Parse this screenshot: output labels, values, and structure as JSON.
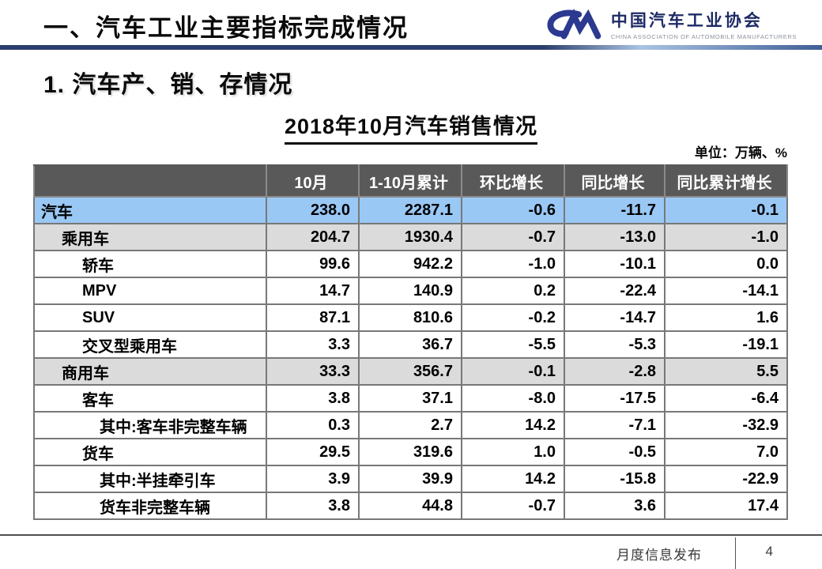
{
  "header": {
    "title": "一、汽车工业主要指标完成情况",
    "logo": {
      "name_cn": "中国汽车工业协会",
      "name_en": "CHINA ASSOCIATION OF AUTOMOBILE MANUFACTURERS"
    }
  },
  "section_title": "1. 汽车产、销、存情况",
  "table_title": "2018年10月汽车销售情况",
  "unit_label": "单位：万辆、%",
  "chart_data": {
    "type": "table",
    "title": "2018年10月汽车销售情况",
    "unit": "万辆、%",
    "columns": [
      "",
      "10月",
      "1-10月累计",
      "环比增长",
      "同比增长",
      "同比累计增长"
    ],
    "rows": [
      {
        "label": "汽车",
        "indent": 0,
        "style": "blue",
        "values": [
          "238.0",
          "2287.1",
          "-0.6",
          "-11.7",
          "-0.1"
        ]
      },
      {
        "label": "乘用车",
        "indent": 1,
        "style": "gray",
        "values": [
          "204.7",
          "1930.4",
          "-0.7",
          "-13.0",
          "-1.0"
        ]
      },
      {
        "label": "轿车",
        "indent": 2,
        "style": "white",
        "values": [
          "99.6",
          "942.2",
          "-1.0",
          "-10.1",
          "0.0"
        ]
      },
      {
        "label": "MPV",
        "indent": 2,
        "style": "white",
        "values": [
          "14.7",
          "140.9",
          "0.2",
          "-22.4",
          "-14.1"
        ]
      },
      {
        "label": "SUV",
        "indent": 2,
        "style": "white",
        "values": [
          "87.1",
          "810.6",
          "-0.2",
          "-14.7",
          "1.6"
        ]
      },
      {
        "label": "交叉型乘用车",
        "indent": 2,
        "style": "white",
        "values": [
          "3.3",
          "36.7",
          "-5.5",
          "-5.3",
          "-19.1"
        ]
      },
      {
        "label": "商用车",
        "indent": 1,
        "style": "gray",
        "values": [
          "33.3",
          "356.7",
          "-0.1",
          "-2.8",
          "5.5"
        ]
      },
      {
        "label": "客车",
        "indent": 2,
        "style": "white",
        "values": [
          "3.8",
          "37.1",
          "-8.0",
          "-17.5",
          "-6.4"
        ]
      },
      {
        "label": "其中:客车非完整车辆",
        "indent": 3,
        "style": "white",
        "values": [
          "0.3",
          "2.7",
          "14.2",
          "-7.1",
          "-32.9"
        ]
      },
      {
        "label": "货车",
        "indent": 2,
        "style": "white",
        "values": [
          "29.5",
          "319.6",
          "1.0",
          "-0.5",
          "7.0"
        ]
      },
      {
        "label": "其中:半挂牵引车",
        "indent": 3,
        "style": "white",
        "values": [
          "3.9",
          "39.9",
          "14.2",
          "-15.8",
          "-22.9"
        ]
      },
      {
        "label": "货车非完整车辆",
        "indent": 3,
        "style": "white",
        "values": [
          "3.8",
          "44.8",
          "-0.7",
          "3.6",
          "17.4"
        ]
      }
    ]
  },
  "footer": {
    "label": "月度信息发布",
    "page_number": "4"
  },
  "colors": {
    "accent_navy": "#2c3e6b",
    "logo_navy": "#2b3990",
    "table_header_bg": "#595959",
    "highlight_row_bg": "#9ac8f5",
    "subtotal_row_bg": "#dbdbdb",
    "border": "#787878"
  }
}
